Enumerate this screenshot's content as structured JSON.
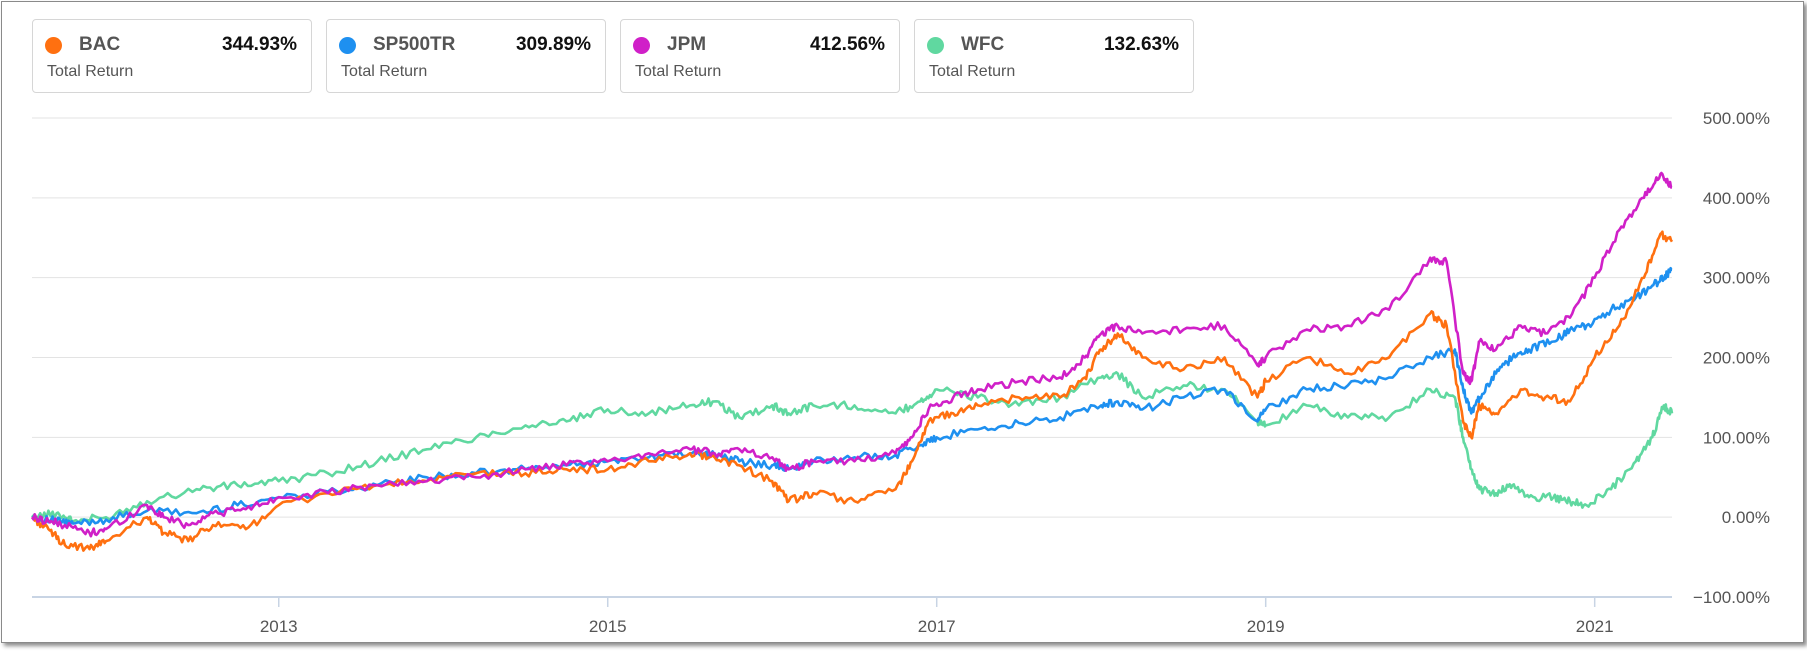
{
  "legend": [
    {
      "symbol": "BAC",
      "value": "344.93%",
      "sub": "Total Return",
      "color": "#FF7010"
    },
    {
      "symbol": "SP500TR",
      "value": "309.89%",
      "sub": "Total Return",
      "color": "#1E90F0"
    },
    {
      "symbol": "JPM",
      "value": "412.56%",
      "sub": "Total Return",
      "color": "#D020C8"
    },
    {
      "symbol": "WFC",
      "value": "132.63%",
      "sub": "Total Return",
      "color": "#60D8A0"
    }
  ],
  "chart_data": {
    "type": "line",
    "title": "",
    "xlabel": "",
    "ylabel": "",
    "ylim": [
      -100,
      500
    ],
    "xlim": [
      2011.5,
      2021.47
    ],
    "y_ticks": [
      {
        "value": 500,
        "label": "500.00%"
      },
      {
        "value": 400,
        "label": "400.00%"
      },
      {
        "value": 300,
        "label": "300.00%"
      },
      {
        "value": 200,
        "label": "200.00%"
      },
      {
        "value": 100,
        "label": "100.00%"
      },
      {
        "value": 0,
        "label": "0.00%"
      },
      {
        "value": -100,
        "label": "−100.00%"
      }
    ],
    "x_ticks": [
      {
        "value": 2013,
        "label": "2013"
      },
      {
        "value": 2015,
        "label": "2015"
      },
      {
        "value": 2017,
        "label": "2017"
      },
      {
        "value": 2019,
        "label": "2019"
      },
      {
        "value": 2021,
        "label": "2021"
      }
    ],
    "grid": true,
    "legend_position": "top",
    "series": [
      {
        "name": "WFC",
        "color": "#60D8A0",
        "x": [
          2011.5,
          2011.65,
          2011.75,
          2011.95,
          2012.2,
          2012.5,
          2012.75,
          2013.0,
          2013.3,
          2013.6,
          2013.9,
          2014.2,
          2014.5,
          2014.75,
          2015.0,
          2015.25,
          2015.5,
          2015.65,
          2015.8,
          2016.0,
          2016.1,
          2016.25,
          2016.5,
          2016.75,
          2016.9,
          2017.0,
          2017.25,
          2017.5,
          2017.75,
          2018.0,
          2018.1,
          2018.25,
          2018.5,
          2018.75,
          2018.95,
          2019.0,
          2019.25,
          2019.5,
          2019.75,
          2020.0,
          2020.15,
          2020.2,
          2020.25,
          2020.3,
          2020.4,
          2020.5,
          2020.6,
          2020.75,
          2020.85,
          2020.95,
          2021.1,
          2021.25,
          2021.35,
          2021.42,
          2021.47
        ],
        "values": [
          0,
          5,
          -5,
          0,
          20,
          35,
          40,
          45,
          55,
          70,
          85,
          100,
          115,
          120,
          135,
          130,
          140,
          145,
          125,
          140,
          130,
          140,
          140,
          130,
          145,
          160,
          150,
          140,
          150,
          175,
          180,
          150,
          165,
          160,
          120,
          115,
          140,
          125,
          125,
          160,
          150,
          100,
          60,
          35,
          30,
          40,
          25,
          25,
          20,
          15,
          35,
          70,
          100,
          140,
          130
        ]
      },
      {
        "name": "SP500TR",
        "color": "#1E90F0",
        "x": [
          2011.5,
          2011.65,
          2011.75,
          2011.95,
          2012.2,
          2012.5,
          2012.75,
          2013.0,
          2013.3,
          2013.6,
          2013.9,
          2014.2,
          2014.5,
          2014.75,
          2015.0,
          2015.25,
          2015.5,
          2015.65,
          2015.8,
          2016.0,
          2016.1,
          2016.25,
          2016.5,
          2016.75,
          2016.9,
          2017.0,
          2017.25,
          2017.5,
          2017.75,
          2018.0,
          2018.1,
          2018.25,
          2018.5,
          2018.75,
          2018.95,
          2019.0,
          2019.25,
          2019.5,
          2019.75,
          2020.0,
          2020.15,
          2020.2,
          2020.25,
          2020.3,
          2020.4,
          2020.5,
          2020.6,
          2020.75,
          2020.85,
          2020.95,
          2021.1,
          2021.25,
          2021.35,
          2021.42,
          2021.47
        ],
        "values": [
          0,
          -5,
          -8,
          -3,
          8,
          5,
          15,
          25,
          32,
          40,
          50,
          55,
          60,
          65,
          70,
          75,
          80,
          78,
          70,
          65,
          60,
          70,
          75,
          78,
          90,
          100,
          110,
          118,
          125,
          140,
          145,
          135,
          150,
          160,
          120,
          135,
          160,
          165,
          175,
          200,
          210,
          160,
          130,
          150,
          180,
          200,
          210,
          220,
          235,
          240,
          260,
          275,
          290,
          300,
          310
        ]
      },
      {
        "name": "BAC",
        "color": "#FF7010",
        "x": [
          2011.5,
          2011.6,
          2011.7,
          2011.85,
          2011.95,
          2012.2,
          2012.3,
          2012.45,
          2012.6,
          2012.8,
          2013.0,
          2013.3,
          2013.6,
          2013.9,
          2014.2,
          2014.5,
          2014.75,
          2015.0,
          2015.25,
          2015.5,
          2015.65,
          2015.8,
          2016.0,
          2016.1,
          2016.25,
          2016.5,
          2016.75,
          2016.85,
          2016.95,
          2017.1,
          2017.25,
          2017.5,
          2017.75,
          2017.9,
          2018.0,
          2018.1,
          2018.25,
          2018.5,
          2018.75,
          2018.95,
          2019.0,
          2019.25,
          2019.5,
          2019.75,
          2020.0,
          2020.1,
          2020.2,
          2020.25,
          2020.3,
          2020.4,
          2020.55,
          2020.7,
          2020.85,
          2021.0,
          2021.15,
          2021.3,
          2021.4,
          2021.47
        ],
        "values": [
          0,
          -15,
          -35,
          -40,
          -30,
          0,
          -20,
          -30,
          -10,
          -15,
          15,
          30,
          40,
          45,
          55,
          55,
          60,
          60,
          70,
          80,
          75,
          65,
          45,
          20,
          30,
          20,
          35,
          70,
          120,
          130,
          140,
          150,
          150,
          175,
          210,
          230,
          200,
          185,
          200,
          150,
          170,
          200,
          180,
          200,
          255,
          240,
          120,
          100,
          140,
          130,
          160,
          150,
          145,
          200,
          240,
          300,
          355,
          345
        ]
      },
      {
        "name": "JPM",
        "color": "#D020C8",
        "x": [
          2011.5,
          2011.6,
          2011.7,
          2011.85,
          2011.95,
          2012.2,
          2012.3,
          2012.45,
          2012.6,
          2012.8,
          2013.0,
          2013.3,
          2013.6,
          2013.9,
          2014.2,
          2014.5,
          2014.75,
          2015.0,
          2015.25,
          2015.5,
          2015.65,
          2015.8,
          2016.0,
          2016.1,
          2016.25,
          2016.5,
          2016.75,
          2016.85,
          2016.95,
          2017.1,
          2017.25,
          2017.5,
          2017.75,
          2017.9,
          2018.0,
          2018.1,
          2018.25,
          2018.5,
          2018.75,
          2018.95,
          2019.0,
          2019.25,
          2019.5,
          2019.75,
          2020.0,
          2020.1,
          2020.2,
          2020.25,
          2020.3,
          2020.4,
          2020.55,
          2020.7,
          2020.85,
          2021.0,
          2021.15,
          2021.3,
          2021.4,
          2021.47
        ],
        "values": [
          0,
          -5,
          -10,
          -20,
          -15,
          15,
          0,
          -10,
          5,
          10,
          25,
          30,
          40,
          45,
          50,
          60,
          65,
          70,
          80,
          85,
          80,
          85,
          75,
          60,
          70,
          70,
          80,
          100,
          135,
          150,
          160,
          170,
          175,
          200,
          230,
          240,
          230,
          235,
          240,
          190,
          200,
          235,
          240,
          260,
          325,
          320,
          180,
          170,
          220,
          210,
          240,
          230,
          250,
          300,
          360,
          400,
          430,
          413
        ]
      }
    ]
  }
}
